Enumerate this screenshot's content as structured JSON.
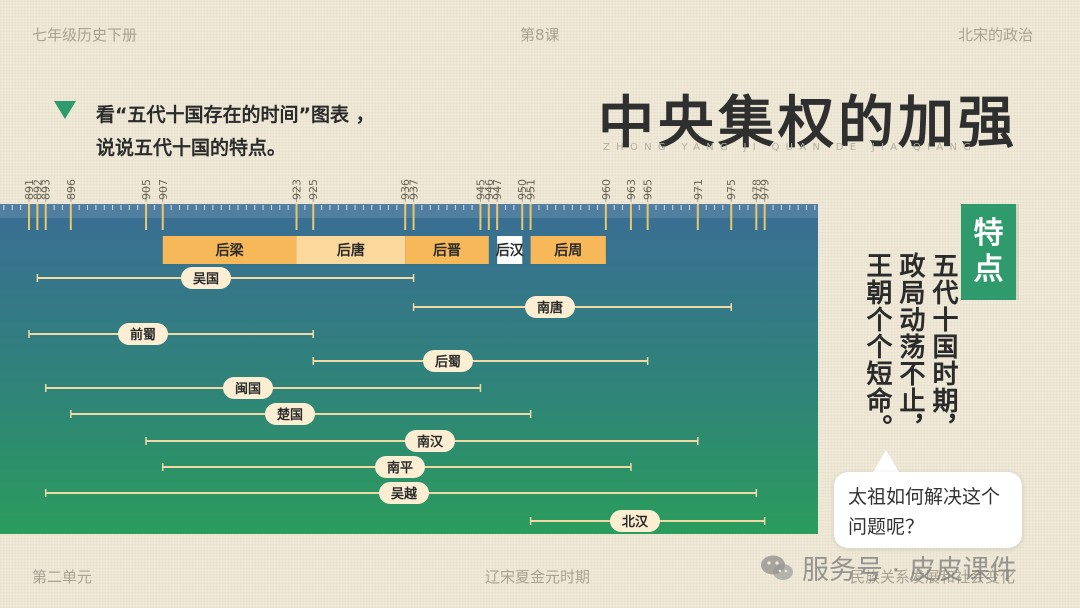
{
  "header": {
    "left": "七年级历史下册",
    "center": "第8课",
    "right": "北宋的政治"
  },
  "footer": {
    "left": "第二单元",
    "center": "辽宋夏金元时期",
    "right": "民族关系发展和社会变化"
  },
  "title": "中央集权的加强",
  "pinyin": "ZHONG YANG JI QUAN DE JIA QIANG",
  "question": {
    "line1": "看“五代十国存在的时间”图表 ，",
    "line2": "说说五代十国的特点。"
  },
  "side_label": "特点",
  "conclusion": {
    "col1": "五代十国时期，",
    "col2": "政局动荡不止，",
    "col3": "王朝个个短命。"
  },
  "bubble": "太祖如何解决这个问题呢？",
  "watermark": "服务号 · 皮皮课件",
  "colors": {
    "accent": "#2f9a6b",
    "bar_top": "#3a6d95",
    "bar_bottom": "#2a9c5c",
    "dynasty_orange": "#f6b858",
    "label_fill": "#fbeed2"
  },
  "chart_data": {
    "type": "timeline",
    "axis_years": [
      891,
      892,
      893,
      896,
      905,
      907,
      923,
      925,
      936,
      937,
      945,
      946,
      947,
      950,
      951,
      960,
      963,
      965,
      971,
      975,
      978,
      979
    ],
    "dynasties": [
      {
        "name": "后梁",
        "start": 907,
        "end": 923
      },
      {
        "name": "后唐",
        "start": 923,
        "end": 936
      },
      {
        "name": "后晋",
        "start": 936,
        "end": 946
      },
      {
        "name": "后汉",
        "start": 947,
        "end": 950
      },
      {
        "name": "后周",
        "start": 951,
        "end": 960
      }
    ],
    "kingdoms": [
      {
        "name": "吴国",
        "start": 892,
        "end": 937
      },
      {
        "name": "南唐",
        "start": 937,
        "end": 975
      },
      {
        "name": "前蜀",
        "start": 891,
        "end": 925
      },
      {
        "name": "后蜀",
        "start": 925,
        "end": 965
      },
      {
        "name": "闽国",
        "start": 893,
        "end": 945
      },
      {
        "name": "楚国",
        "start": 896,
        "end": 951
      },
      {
        "name": "南汉",
        "start": 905,
        "end": 971
      },
      {
        "name": "南平",
        "start": 907,
        "end": 963
      },
      {
        "name": "吴越",
        "start": 893,
        "end": 978
      },
      {
        "name": "北汉",
        "start": 951,
        "end": 979
      }
    ]
  }
}
